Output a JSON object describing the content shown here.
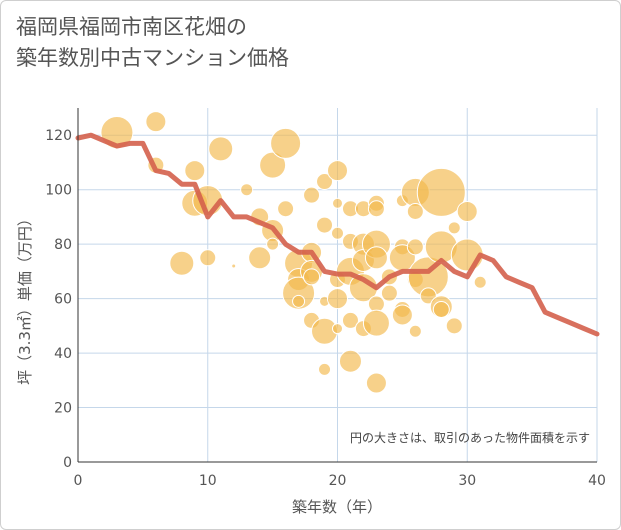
{
  "title": "福岡県福岡市南区花畑の\n築年数別中古マンション価格",
  "note": "円の大きさは、取引のあった物件面積を示す",
  "chart_data": {
    "type": "scatter",
    "xlabel": "築年数（年）",
    "ylabel": "坪（3.3㎡）単価（万円）",
    "xlim": [
      0,
      40
    ],
    "ylim": [
      0,
      130
    ],
    "xticks": [
      0,
      10,
      20,
      30,
      40
    ],
    "yticks": [
      0,
      20,
      40,
      60,
      80,
      100,
      120
    ],
    "grid": true,
    "colors": {
      "bubble": "#f2b84b",
      "line": "#d4604c",
      "grid": "#c5d7ea"
    },
    "bubbles": [
      {
        "x": 3,
        "y": 121,
        "s": 16
      },
      {
        "x": 6,
        "y": 125,
        "s": 10
      },
      {
        "x": 6,
        "y": 109,
        "s": 8
      },
      {
        "x": 9,
        "y": 107,
        "s": 10
      },
      {
        "x": 9,
        "y": 95,
        "s": 13
      },
      {
        "x": 10,
        "y": 96,
        "s": 15
      },
      {
        "x": 11,
        "y": 115,
        "s": 12
      },
      {
        "x": 8,
        "y": 73,
        "s": 12
      },
      {
        "x": 10,
        "y": 75,
        "s": 8
      },
      {
        "x": 12,
        "y": 72,
        "s": 2
      },
      {
        "x": 13,
        "y": 100,
        "s": 6
      },
      {
        "x": 14,
        "y": 75,
        "s": 11
      },
      {
        "x": 14,
        "y": 90,
        "s": 9
      },
      {
        "x": 15,
        "y": 109,
        "s": 13
      },
      {
        "x": 15,
        "y": 85,
        "s": 11
      },
      {
        "x": 15,
        "y": 80,
        "s": 6
      },
      {
        "x": 16,
        "y": 117,
        "s": 15
      },
      {
        "x": 16,
        "y": 93,
        "s": 8
      },
      {
        "x": 17,
        "y": 73,
        "s": 14
      },
      {
        "x": 17,
        "y": 67,
        "s": 11
      },
      {
        "x": 17,
        "y": 62,
        "s": 16
      },
      {
        "x": 17,
        "y": 59,
        "s": 6
      },
      {
        "x": 18,
        "y": 77,
        "s": 10
      },
      {
        "x": 18,
        "y": 70,
        "s": 11
      },
      {
        "x": 18,
        "y": 68,
        "s": 8
      },
      {
        "x": 18,
        "y": 98,
        "s": 8
      },
      {
        "x": 18,
        "y": 52,
        "s": 8
      },
      {
        "x": 19,
        "y": 48,
        "s": 13
      },
      {
        "x": 19,
        "y": 34,
        "s": 6
      },
      {
        "x": 19,
        "y": 59,
        "s": 5
      },
      {
        "x": 19,
        "y": 87,
        "s": 8
      },
      {
        "x": 19,
        "y": 103,
        "s": 8
      },
      {
        "x": 20,
        "y": 107,
        "s": 10
      },
      {
        "x": 20,
        "y": 95,
        "s": 5
      },
      {
        "x": 20,
        "y": 84,
        "s": 6
      },
      {
        "x": 20,
        "y": 67,
        "s": 8
      },
      {
        "x": 20,
        "y": 60,
        "s": 10
      },
      {
        "x": 20,
        "y": 49,
        "s": 5
      },
      {
        "x": 21,
        "y": 93,
        "s": 8
      },
      {
        "x": 21,
        "y": 81,
        "s": 8
      },
      {
        "x": 21,
        "y": 70,
        "s": 14
      },
      {
        "x": 21,
        "y": 52,
        "s": 8
      },
      {
        "x": 21,
        "y": 37,
        "s": 11
      },
      {
        "x": 22,
        "y": 93,
        "s": 8
      },
      {
        "x": 22,
        "y": 80,
        "s": 11
      },
      {
        "x": 22,
        "y": 74,
        "s": 11
      },
      {
        "x": 22,
        "y": 64,
        "s": 14
      },
      {
        "x": 22,
        "y": 49,
        "s": 8
      },
      {
        "x": 23,
        "y": 95,
        "s": 8
      },
      {
        "x": 23,
        "y": 93,
        "s": 8
      },
      {
        "x": 23,
        "y": 80,
        "s": 14
      },
      {
        "x": 23,
        "y": 75,
        "s": 11
      },
      {
        "x": 23,
        "y": 58,
        "s": 8
      },
      {
        "x": 23,
        "y": 51,
        "s": 13
      },
      {
        "x": 23,
        "y": 29,
        "s": 10
      },
      {
        "x": 24,
        "y": 68,
        "s": 8
      },
      {
        "x": 24,
        "y": 62,
        "s": 8
      },
      {
        "x": 25,
        "y": 96,
        "s": 6
      },
      {
        "x": 25,
        "y": 79,
        "s": 8
      },
      {
        "x": 25,
        "y": 75,
        "s": 13
      },
      {
        "x": 25,
        "y": 56,
        "s": 8
      },
      {
        "x": 25,
        "y": 54,
        "s": 10
      },
      {
        "x": 26,
        "y": 99,
        "s": 14
      },
      {
        "x": 26,
        "y": 92,
        "s": 8
      },
      {
        "x": 26,
        "y": 79,
        "s": 8
      },
      {
        "x": 26,
        "y": 67,
        "s": 8
      },
      {
        "x": 26,
        "y": 48,
        "s": 6
      },
      {
        "x": 27,
        "y": 68,
        "s": 20
      },
      {
        "x": 27,
        "y": 61,
        "s": 8
      },
      {
        "x": 28,
        "y": 99,
        "s": 24
      },
      {
        "x": 28,
        "y": 79,
        "s": 16
      },
      {
        "x": 28,
        "y": 57,
        "s": 11
      },
      {
        "x": 28,
        "y": 56,
        "s": 8
      },
      {
        "x": 29,
        "y": 86,
        "s": 6
      },
      {
        "x": 29,
        "y": 50,
        "s": 8
      },
      {
        "x": 30,
        "y": 92,
        "s": 10
      },
      {
        "x": 30,
        "y": 76,
        "s": 16
      },
      {
        "x": 31,
        "y": 66,
        "s": 6
      }
    ],
    "line": {
      "x": [
        0,
        1,
        2,
        3,
        4,
        5,
        6,
        7,
        8,
        9,
        10,
        11,
        12,
        13,
        14,
        15,
        16,
        17,
        18,
        19,
        20,
        21,
        22,
        23,
        24,
        25,
        26,
        27,
        28,
        29,
        30,
        31,
        32,
        33,
        34,
        35,
        36,
        37,
        38,
        39,
        40
      ],
      "y": [
        119,
        120,
        118,
        116,
        117,
        117,
        107,
        106,
        102,
        102,
        90,
        96,
        90,
        90,
        88,
        86,
        80,
        77,
        77,
        70,
        69,
        69,
        67,
        64,
        68,
        70,
        70,
        70,
        74,
        70,
        68,
        76,
        74,
        68,
        66,
        64,
        55,
        53,
        51,
        49,
        47
      ]
    }
  }
}
